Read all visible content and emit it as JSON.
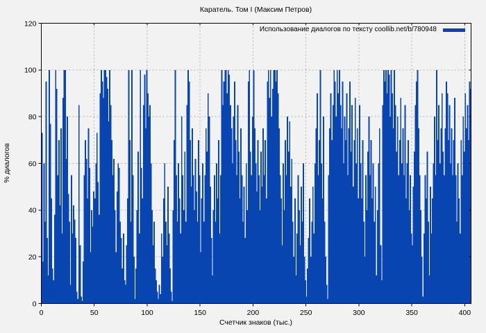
{
  "chart_data": {
    "type": "bar",
    "title": "Каратель. Том I (Максим Петров)",
    "legend_label": "Использование диалогов по тексту coollib.net/b/780948",
    "xlabel": "Счетчик знаков (тыс.)",
    "ylabel": "% диалогов",
    "xlim": [
      0,
      406
    ],
    "ylim": [
      0,
      120
    ],
    "x_ticks": [
      0,
      50,
      100,
      150,
      200,
      250,
      300,
      350,
      400
    ],
    "y_ticks": [
      0,
      20,
      40,
      60,
      80,
      100,
      120
    ],
    "grid": true,
    "legend_position": "top-right-inside",
    "colors": {
      "bar": "#0845b0",
      "grid": "#b0b0b0",
      "frame": "#000000",
      "background": "#f2f2f2",
      "text": "#000000"
    },
    "x_start": 0,
    "x_step": 1,
    "values": [
      73,
      18,
      60,
      35,
      95,
      28,
      12,
      100,
      77,
      45,
      15,
      10,
      38,
      100,
      92,
      55,
      70,
      42,
      75,
      30,
      88,
      100,
      100,
      62,
      80,
      47,
      35,
      8,
      55,
      30,
      42,
      36,
      28,
      5,
      2,
      85,
      25,
      3,
      1,
      18,
      55,
      70,
      62,
      45,
      75,
      58,
      22,
      40,
      33,
      48,
      45,
      60,
      73,
      52,
      38,
      90,
      100,
      95,
      88,
      100,
      100,
      97,
      92,
      78,
      100,
      85,
      70,
      55,
      62,
      40,
      22,
      48,
      60,
      58,
      35,
      28,
      15,
      30,
      10,
      8,
      25,
      45,
      100,
      70,
      35,
      100,
      55,
      20,
      2,
      15,
      40,
      65,
      30,
      100,
      58,
      45,
      85,
      98,
      75,
      100,
      90,
      80,
      85,
      60,
      40,
      25,
      35,
      15,
      10,
      5,
      2,
      8,
      4,
      30,
      20,
      45,
      60,
      35,
      25,
      50,
      30,
      15,
      5,
      1,
      40,
      70,
      100,
      55,
      35,
      60,
      45,
      30,
      80,
      55,
      40,
      65,
      35,
      85,
      100,
      95,
      70,
      50,
      75,
      55,
      40,
      62,
      48,
      35,
      70,
      55,
      22,
      45,
      60,
      35,
      55,
      75,
      65,
      90,
      80,
      50,
      28,
      12,
      40,
      55,
      35,
      60,
      45,
      70,
      30,
      55,
      100,
      85,
      95,
      100,
      100,
      90,
      100,
      98,
      85,
      75,
      60,
      80,
      95,
      70,
      55,
      85,
      65,
      45,
      75,
      55,
      35,
      50,
      28,
      60,
      40,
      95,
      100,
      65,
      55,
      80,
      100,
      75,
      60,
      48,
      70,
      55,
      40,
      65,
      50,
      75,
      55,
      70,
      45,
      95,
      100,
      88,
      100,
      80,
      92,
      100,
      100,
      95,
      100,
      90,
      75,
      55,
      45,
      25,
      60,
      40,
      70,
      55,
      80,
      65,
      78,
      50,
      62,
      35,
      20,
      45,
      12,
      30,
      55,
      40,
      25,
      50,
      35,
      60,
      20,
      10,
      3,
      15,
      28,
      45,
      20,
      35,
      50,
      30,
      60,
      75,
      90,
      55,
      70,
      100,
      60,
      45,
      80,
      35,
      20,
      8,
      2,
      55,
      75,
      90,
      70,
      85,
      100,
      95,
      80,
      100,
      90,
      100,
      85,
      75,
      95,
      60,
      80,
      70,
      90,
      55,
      75,
      95,
      65,
      85,
      50,
      70,
      88,
      60,
      75,
      45,
      85,
      60,
      45,
      70,
      35,
      20,
      55,
      40,
      65,
      80,
      55,
      70,
      45,
      60,
      35,
      50,
      12,
      40,
      60,
      75,
      25,
      10,
      85,
      100,
      95,
      100,
      90,
      100,
      98,
      80,
      100,
      90,
      75,
      100,
      85,
      65,
      80,
      55,
      70,
      88,
      60,
      75,
      55,
      85,
      45,
      60,
      70,
      40,
      55,
      30,
      25,
      50,
      65,
      85,
      95,
      100,
      75,
      55,
      40,
      20,
      3,
      30,
      55,
      45,
      65,
      35,
      12,
      50,
      30,
      45,
      60,
      80,
      55,
      100,
      70,
      85,
      60,
      75,
      90,
      65,
      55,
      75,
      95,
      90,
      70,
      85,
      60,
      75,
      55,
      70,
      88,
      55,
      35,
      60,
      45,
      30,
      70,
      55,
      80,
      65,
      90,
      75,
      85,
      70,
      95,
      92
    ]
  }
}
